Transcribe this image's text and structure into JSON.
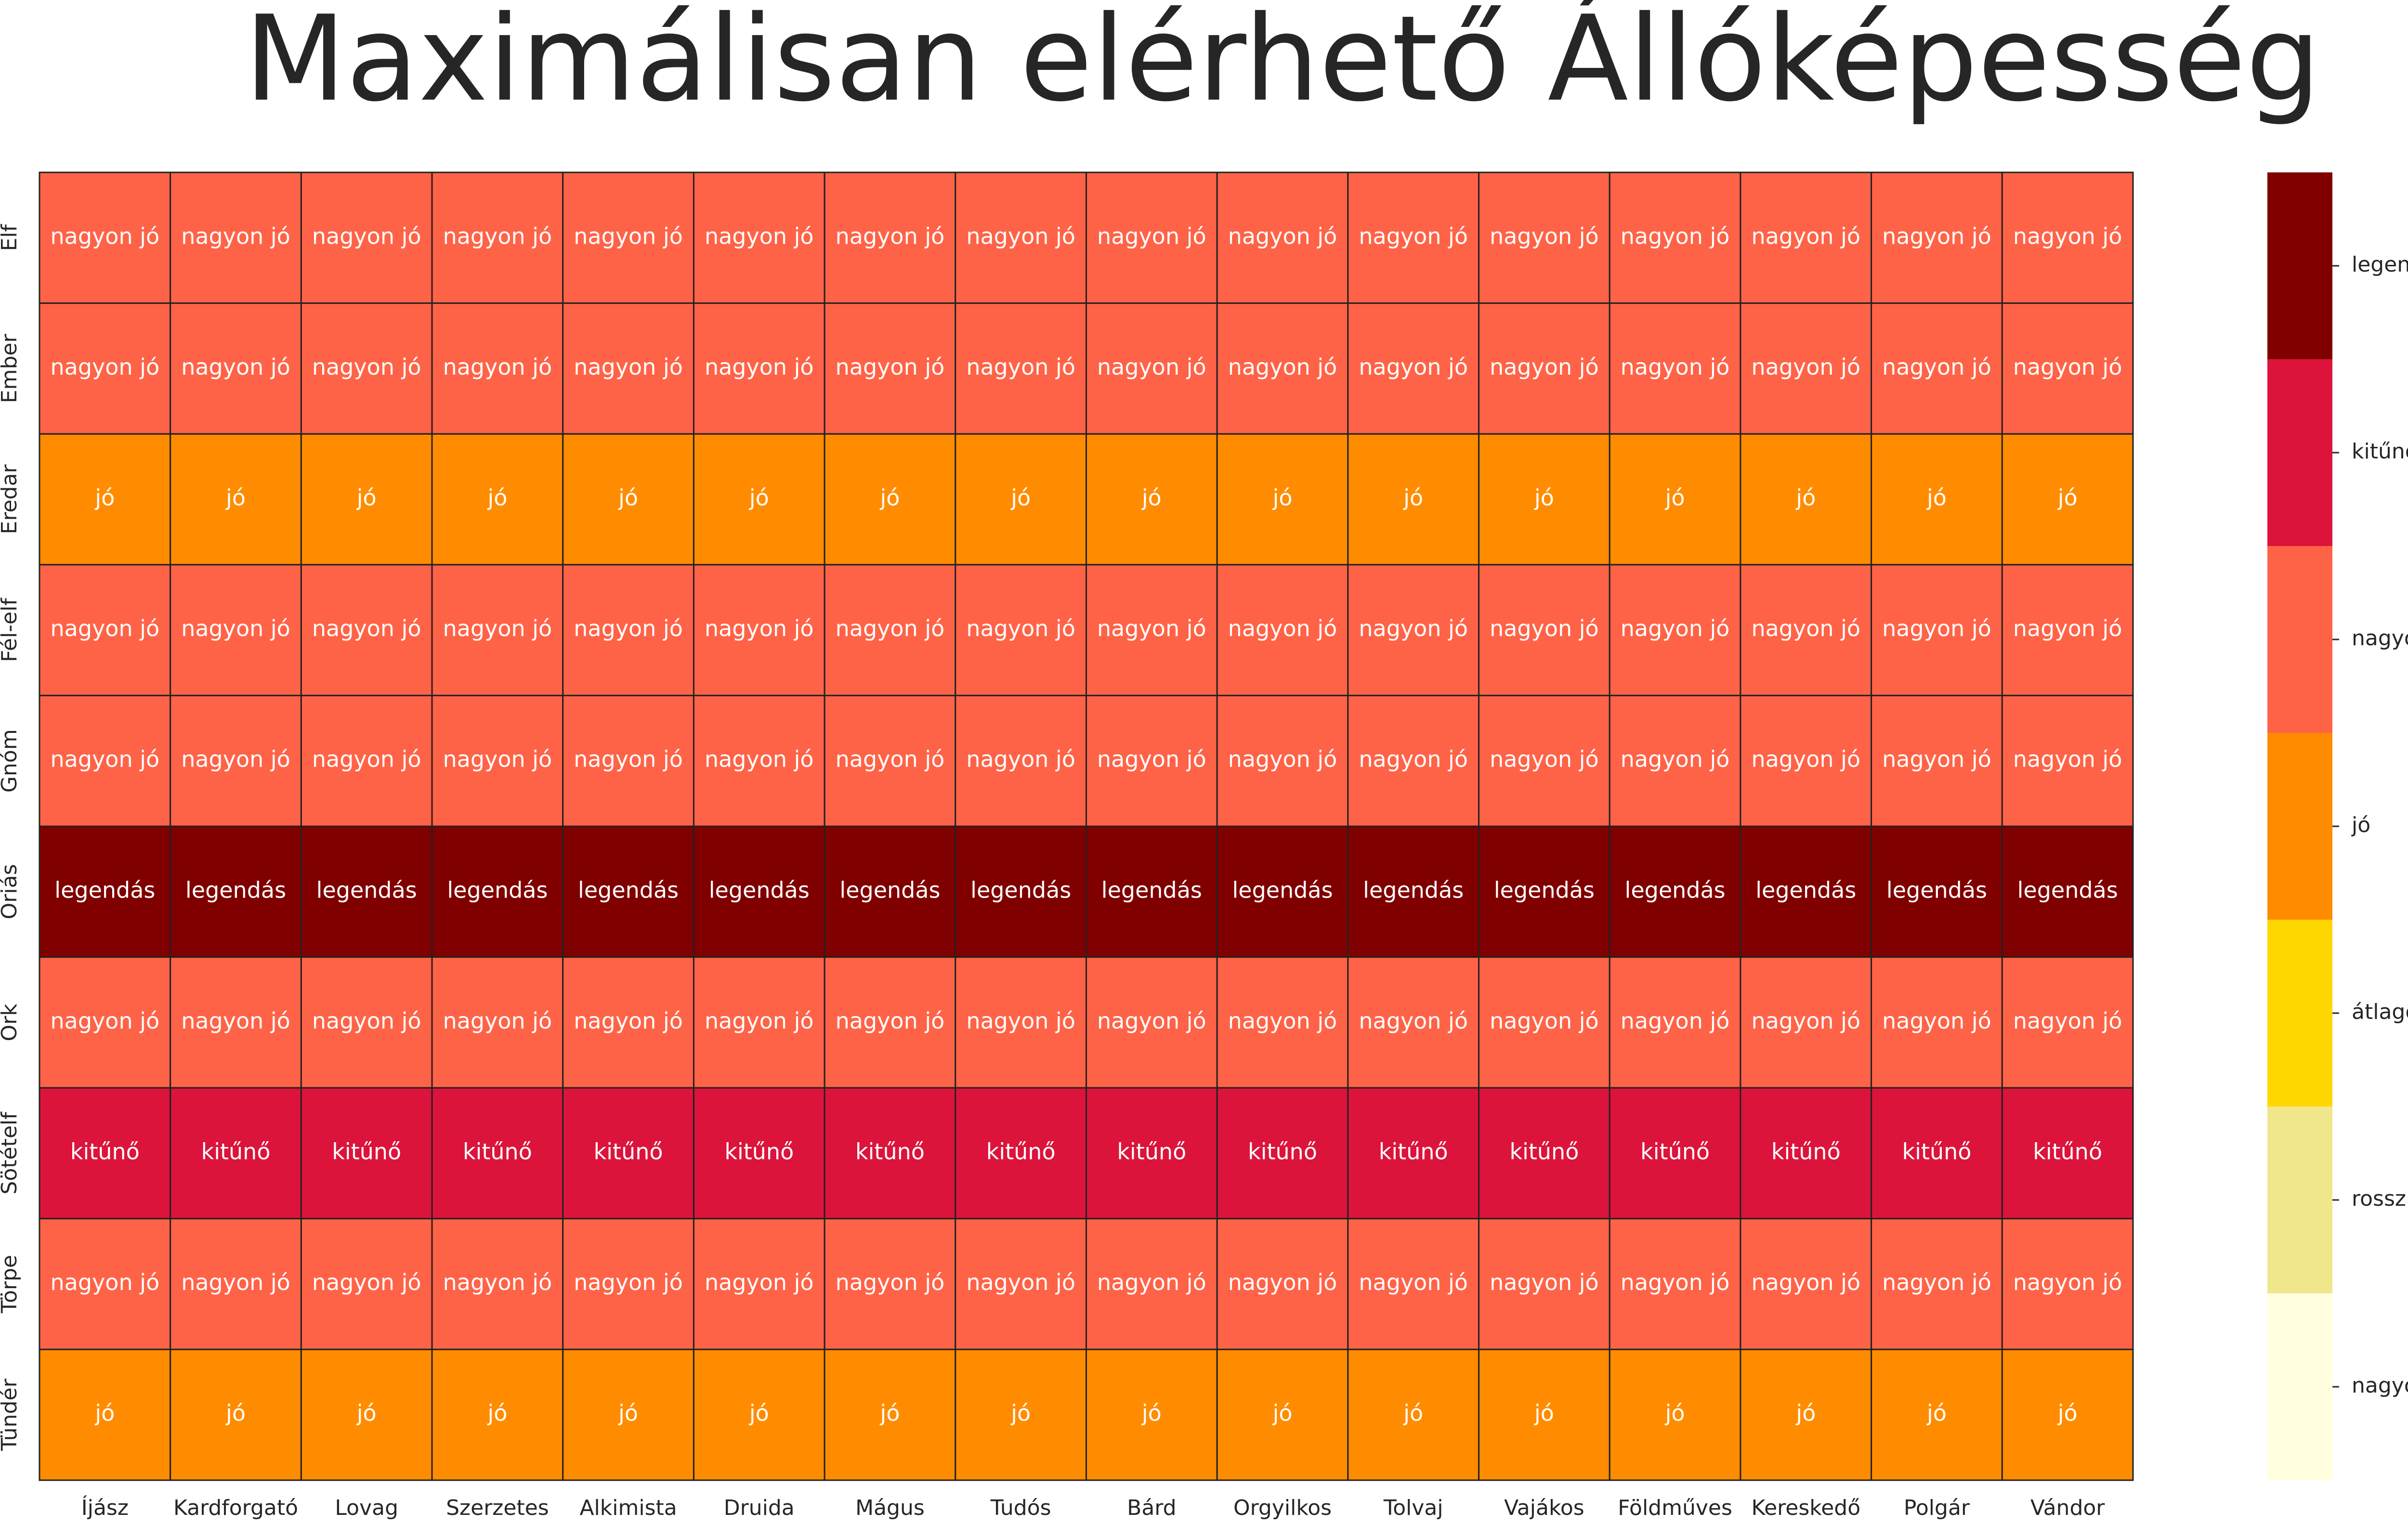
{
  "chart_data": {
    "type": "heatmap",
    "title": "Maximálisan elérhető Állóképesség",
    "x_categories": [
      "Íjász",
      "Kardforgató",
      "Lovag",
      "Szerzetes",
      "Alkimista",
      "Druida",
      "Mágus",
      "Tudós",
      "Bárd",
      "Orgyilkos",
      "Tolvaj",
      "Vajákos",
      "Földműves",
      "Kereskedő",
      "Polgár",
      "Vándor"
    ],
    "y_categories": [
      "Elf",
      "Ember",
      "Eredar",
      "Fél-elf",
      "Gnóm",
      "Óriás",
      "Ork",
      "Sötételf",
      "Törpe",
      "Tündér"
    ],
    "values": [
      [
        4,
        4,
        4,
        4,
        4,
        4,
        4,
        4,
        4,
        4,
        4,
        4,
        4,
        4,
        4,
        4
      ],
      [
        4,
        4,
        4,
        4,
        4,
        4,
        4,
        4,
        4,
        4,
        4,
        4,
        4,
        4,
        4,
        4
      ],
      [
        3,
        3,
        3,
        3,
        3,
        3,
        3,
        3,
        3,
        3,
        3,
        3,
        3,
        3,
        3,
        3
      ],
      [
        4,
        4,
        4,
        4,
        4,
        4,
        4,
        4,
        4,
        4,
        4,
        4,
        4,
        4,
        4,
        4
      ],
      [
        4,
        4,
        4,
        4,
        4,
        4,
        4,
        4,
        4,
        4,
        4,
        4,
        4,
        4,
        4,
        4
      ],
      [
        6,
        6,
        6,
        6,
        6,
        6,
        6,
        6,
        6,
        6,
        6,
        6,
        6,
        6,
        6,
        6
      ],
      [
        4,
        4,
        4,
        4,
        4,
        4,
        4,
        4,
        4,
        4,
        4,
        4,
        4,
        4,
        4,
        4
      ],
      [
        5,
        5,
        5,
        5,
        5,
        5,
        5,
        5,
        5,
        5,
        5,
        5,
        5,
        5,
        5,
        5
      ],
      [
        4,
        4,
        4,
        4,
        4,
        4,
        4,
        4,
        4,
        4,
        4,
        4,
        4,
        4,
        4,
        4
      ],
      [
        3,
        3,
        3,
        3,
        3,
        3,
        3,
        3,
        3,
        3,
        3,
        3,
        3,
        3,
        3,
        3
      ]
    ],
    "value_labels": [
      [
        "nagyon jó",
        "nagyon jó",
        "nagyon jó",
        "nagyon jó",
        "nagyon jó",
        "nagyon jó",
        "nagyon jó",
        "nagyon jó",
        "nagyon jó",
        "nagyon jó",
        "nagyon jó",
        "nagyon jó",
        "nagyon jó",
        "nagyon jó",
        "nagyon jó",
        "nagyon jó"
      ],
      [
        "nagyon jó",
        "nagyon jó",
        "nagyon jó",
        "nagyon jó",
        "nagyon jó",
        "nagyon jó",
        "nagyon jó",
        "nagyon jó",
        "nagyon jó",
        "nagyon jó",
        "nagyon jó",
        "nagyon jó",
        "nagyon jó",
        "nagyon jó",
        "nagyon jó",
        "nagyon jó"
      ],
      [
        "jó",
        "jó",
        "jó",
        "jó",
        "jó",
        "jó",
        "jó",
        "jó",
        "jó",
        "jó",
        "jó",
        "jó",
        "jó",
        "jó",
        "jó",
        "jó"
      ],
      [
        "nagyon jó",
        "nagyon jó",
        "nagyon jó",
        "nagyon jó",
        "nagyon jó",
        "nagyon jó",
        "nagyon jó",
        "nagyon jó",
        "nagyon jó",
        "nagyon jó",
        "nagyon jó",
        "nagyon jó",
        "nagyon jó",
        "nagyon jó",
        "nagyon jó",
        "nagyon jó"
      ],
      [
        "nagyon jó",
        "nagyon jó",
        "nagyon jó",
        "nagyon jó",
        "nagyon jó",
        "nagyon jó",
        "nagyon jó",
        "nagyon jó",
        "nagyon jó",
        "nagyon jó",
        "nagyon jó",
        "nagyon jó",
        "nagyon jó",
        "nagyon jó",
        "nagyon jó",
        "nagyon jó"
      ],
      [
        "legendás",
        "legendás",
        "legendás",
        "legendás",
        "legendás",
        "legendás",
        "legendás",
        "legendás",
        "legendás",
        "legendás",
        "legendás",
        "legendás",
        "legendás",
        "legendás",
        "legendás",
        "legendás"
      ],
      [
        "nagyon jó",
        "nagyon jó",
        "nagyon jó",
        "nagyon jó",
        "nagyon jó",
        "nagyon jó",
        "nagyon jó",
        "nagyon jó",
        "nagyon jó",
        "nagyon jó",
        "nagyon jó",
        "nagyon jó",
        "nagyon jó",
        "nagyon jó",
        "nagyon jó",
        "nagyon jó"
      ],
      [
        "kitűnő",
        "kitűnő",
        "kitűnő",
        "kitűnő",
        "kitűnő",
        "kitűnő",
        "kitűnő",
        "kitűnő",
        "kitűnő",
        "kitűnő",
        "kitűnő",
        "kitűnő",
        "kitűnő",
        "kitűnő",
        "kitűnő",
        "kitűnő"
      ],
      [
        "nagyon jó",
        "nagyon jó",
        "nagyon jó",
        "nagyon jó",
        "nagyon jó",
        "nagyon jó",
        "nagyon jó",
        "nagyon jó",
        "nagyon jó",
        "nagyon jó",
        "nagyon jó",
        "nagyon jó",
        "nagyon jó",
        "nagyon jó",
        "nagyon jó",
        "nagyon jó"
      ],
      [
        "jó",
        "jó",
        "jó",
        "jó",
        "jó",
        "jó",
        "jó",
        "jó",
        "jó",
        "jó",
        "jó",
        "jó",
        "jó",
        "jó",
        "jó",
        "jó"
      ]
    ],
    "colors": [
      "#ffffe0",
      "#f0e68c",
      "#ffd700",
      "#ff8c00",
      "#ff6347",
      "#dc143c",
      "#800000"
    ],
    "colorbar_lim": [
      -0.5,
      6.5
    ],
    "colorbar_ticks": [
      {
        "value": 0,
        "label": "nagyon rossz"
      },
      {
        "value": 1,
        "label": "rossz"
      },
      {
        "value": 2,
        "label": "átlagos"
      },
      {
        "value": 3,
        "label": "jó"
      },
      {
        "value": 4,
        "label": "nagyon jó"
      },
      {
        "value": 5,
        "label": "kitűnő"
      },
      {
        "value": 6,
        "label": "legendás"
      }
    ]
  }
}
